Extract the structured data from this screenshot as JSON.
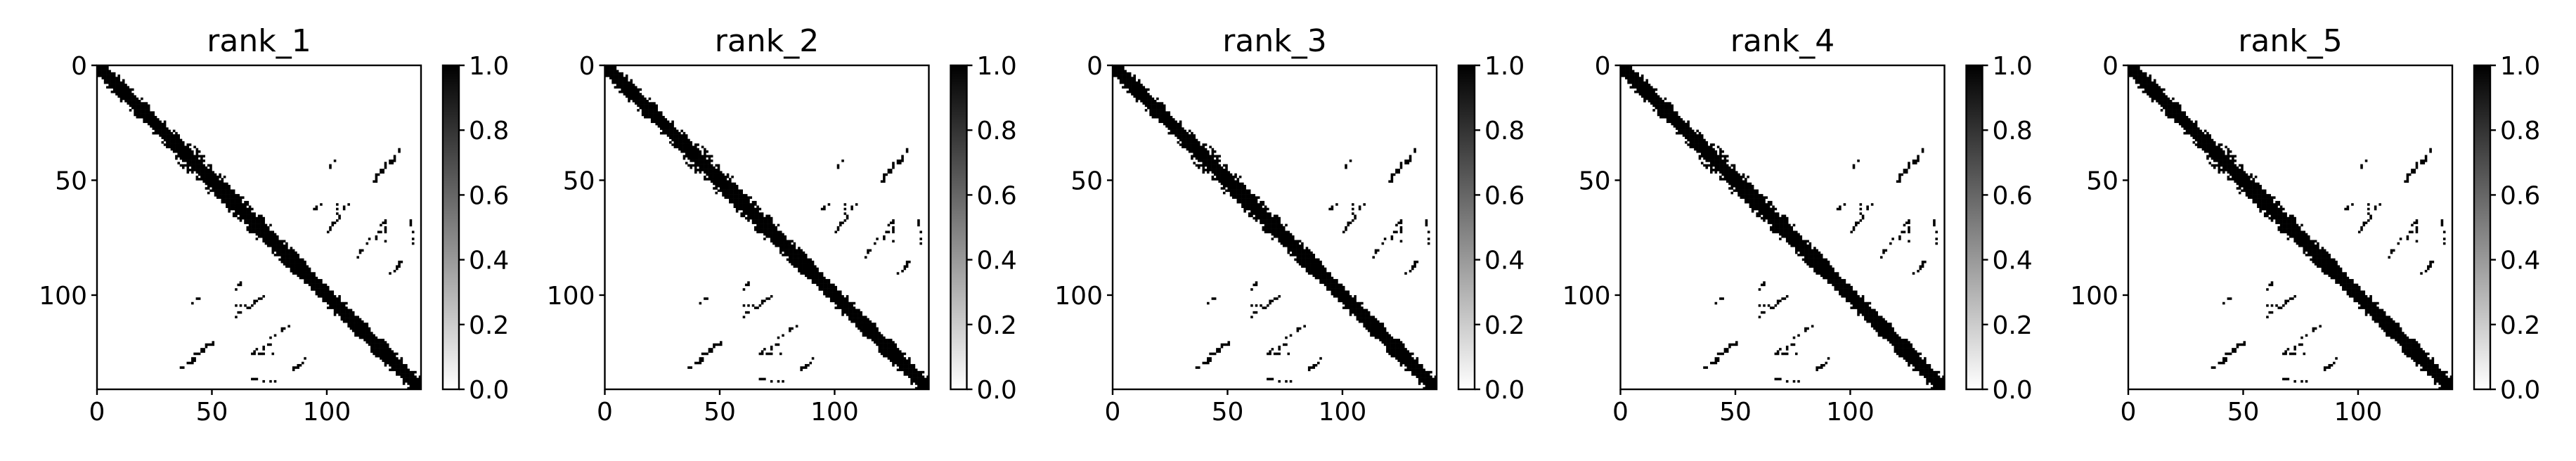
{
  "figure": {
    "colormap": "gray_r",
    "colors": {
      "low": "#ffffff",
      "high": "#000000"
    }
  },
  "chart_data": [
    {
      "type": "heatmap",
      "title": "rank_1",
      "matrix_size": 141,
      "xlim": [
        0,
        141
      ],
      "ylim": [
        141,
        0
      ],
      "xticks": [
        0,
        50,
        100
      ],
      "yticks": [
        0,
        50,
        100
      ],
      "colorbar": {
        "range": [
          0.0,
          1.0
        ],
        "ticks": [
          "0.0",
          "0.2",
          "0.4",
          "0.6",
          "0.8",
          "1.0"
        ]
      },
      "pattern": "symmetric binary contact map: dense main diagonal band with scattered off-diagonal contacts (around rows 35-80 / cols 105-141 and mirrored)"
    },
    {
      "type": "heatmap",
      "title": "rank_2",
      "matrix_size": 141,
      "xlim": [
        0,
        141
      ],
      "ylim": [
        141,
        0
      ],
      "xticks": [
        0,
        50,
        100
      ],
      "yticks": [
        0,
        50,
        100
      ],
      "colorbar": {
        "range": [
          0.0,
          1.0
        ],
        "ticks": [
          "0.0",
          "0.2",
          "0.4",
          "0.6",
          "0.8",
          "1.0"
        ]
      },
      "pattern": "symmetric binary contact map: dense main diagonal band with scattered off-diagonal contacts"
    },
    {
      "type": "heatmap",
      "title": "rank_3",
      "matrix_size": 141,
      "xlim": [
        0,
        141
      ],
      "ylim": [
        141,
        0
      ],
      "xticks": [
        0,
        50,
        100
      ],
      "yticks": [
        0,
        50,
        100
      ],
      "colorbar": {
        "range": [
          0.0,
          1.0
        ],
        "ticks": [
          "0.0",
          "0.2",
          "0.4",
          "0.6",
          "0.8",
          "1.0"
        ]
      },
      "pattern": "symmetric binary contact map: dense main diagonal band with scattered off-diagonal contacts"
    },
    {
      "type": "heatmap",
      "title": "rank_4",
      "matrix_size": 141,
      "xlim": [
        0,
        141
      ],
      "ylim": [
        141,
        0
      ],
      "xticks": [
        0,
        50,
        100
      ],
      "yticks": [
        0,
        50,
        100
      ],
      "colorbar": {
        "range": [
          0.0,
          1.0
        ],
        "ticks": [
          "0.0",
          "0.2",
          "0.4",
          "0.6",
          "0.8",
          "1.0"
        ]
      },
      "pattern": "symmetric binary contact map: dense main diagonal band with scattered off-diagonal contacts"
    },
    {
      "type": "heatmap",
      "title": "rank_5",
      "matrix_size": 141,
      "xlim": [
        0,
        141
      ],
      "ylim": [
        141,
        0
      ],
      "xticks": [
        0,
        50,
        100
      ],
      "yticks": [
        0,
        50,
        100
      ],
      "colorbar": {
        "range": [
          0.0,
          1.0
        ],
        "ticks": [
          "0.0",
          "0.2",
          "0.4",
          "0.6",
          "0.8",
          "1.0"
        ]
      },
      "pattern": "symmetric binary contact map: dense main diagonal band with scattered off-diagonal contacts"
    }
  ]
}
